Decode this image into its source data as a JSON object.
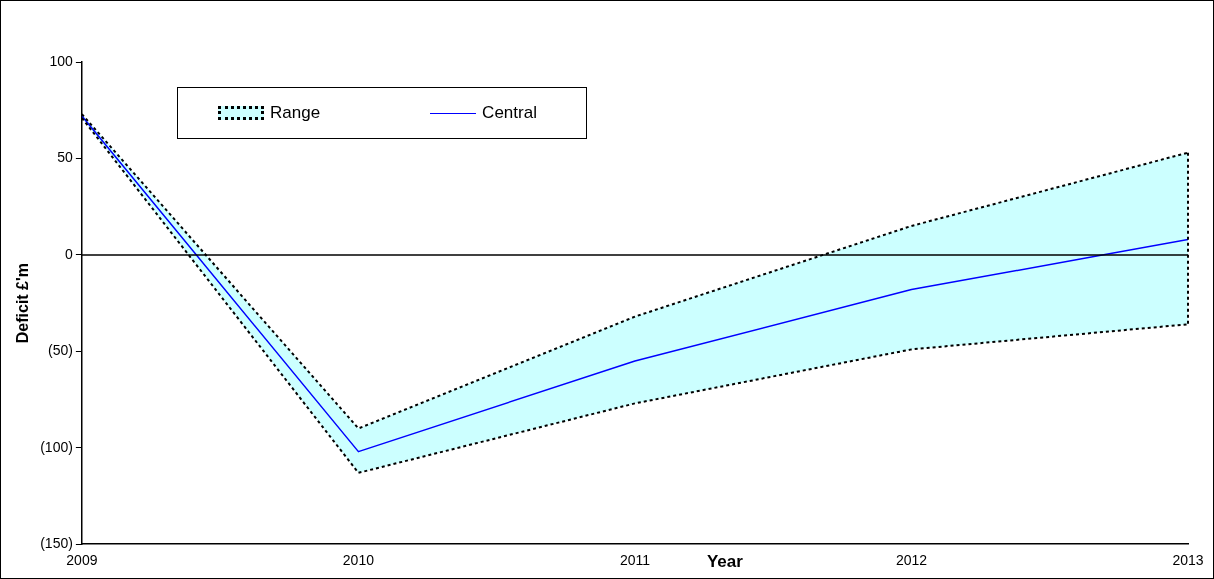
{
  "chart_data": {
    "type": "line",
    "xlabel": "Year",
    "ylabel": "Deficit £'m",
    "x": [
      2009,
      2010,
      2011,
      2012,
      2013
    ],
    "xlim": [
      2009,
      2013
    ],
    "xticks": [
      2009,
      2010,
      2011,
      2012,
      2013
    ],
    "ylim": [
      -150,
      100
    ],
    "yticks": [
      {
        "value": -150,
        "label": "(150)"
      },
      {
        "value": -100,
        "label": "(100)"
      },
      {
        "value": -50,
        "label": "(50)"
      },
      0,
      50,
      100
    ],
    "series": [
      {
        "name": "Range",
        "type": "area",
        "color": "#ccffff",
        "line_style": "dotted",
        "values": [
          null,
          null,
          null,
          null,
          null
        ],
        "lower": [
          71,
          -113,
          -77,
          -49,
          -36
        ],
        "upper": [
          73,
          -90,
          -32,
          15,
          53
        ]
      },
      {
        "type": "line",
        "color": "#000000",
        "line_style": "dotted",
        "values": [
          73,
          -90,
          -32,
          15,
          53
        ]
      },
      {
        "type": "line",
        "color": "#000000",
        "line_style": "dotted",
        "values": [
          71,
          -113,
          -77,
          -49,
          -36
        ]
      },
      {
        "name": "Central",
        "type": "line",
        "color": "#0000ff",
        "values": [
          72,
          -102,
          -55,
          -18,
          8
        ]
      }
    ],
    "ref_lines": [
      {
        "axis": "y",
        "value": 0,
        "color": "#000000"
      }
    ],
    "grid": false,
    "legend": "top left",
    "marker": "none"
  }
}
